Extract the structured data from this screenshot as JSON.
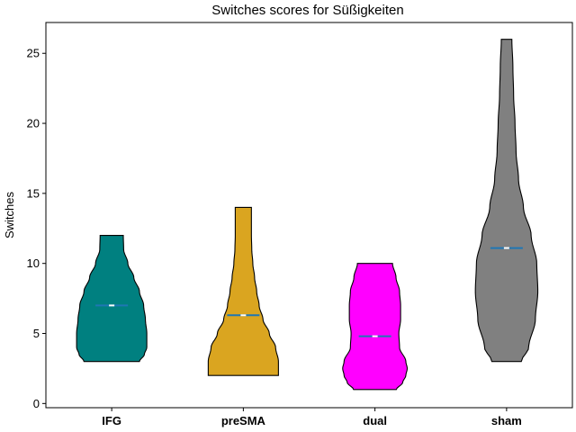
{
  "chart_data": {
    "type": "violin",
    "title": "Switches scores for Süßigkeiten",
    "xlabel": "",
    "ylabel": "Switches",
    "ylim": [
      -0.3,
      27.2
    ],
    "yticks": [
      0,
      5,
      10,
      15,
      20,
      25
    ],
    "grid": false,
    "legend": "none",
    "categories": [
      "IFG",
      "preSMA",
      "dual",
      "sham"
    ],
    "series": [
      {
        "category": "IFG",
        "color": "#008080",
        "min": 3,
        "max": 12,
        "median": 7.0,
        "mean": 7.0,
        "profile": [
          [
            3,
            0.79
          ],
          [
            3.5,
            0.93
          ],
          [
            4,
            1.0
          ],
          [
            5,
            1.0
          ],
          [
            6,
            0.96
          ],
          [
            7,
            0.91
          ],
          [
            8,
            0.79
          ],
          [
            9,
            0.63
          ],
          [
            10,
            0.46
          ],
          [
            11,
            0.34
          ],
          [
            12,
            0.33
          ]
        ]
      },
      {
        "category": "preSMA",
        "color": "#DAA520",
        "min": 2,
        "max": 14,
        "median": 6.3,
        "mean": 6.3,
        "profile": [
          [
            2,
            1.0
          ],
          [
            3,
            1.0
          ],
          [
            4,
            0.92
          ],
          [
            5,
            0.74
          ],
          [
            6,
            0.56
          ],
          [
            7,
            0.45
          ],
          [
            8,
            0.38
          ],
          [
            9,
            0.32
          ],
          [
            10,
            0.27
          ],
          [
            11,
            0.24
          ],
          [
            12,
            0.23
          ],
          [
            13,
            0.23
          ],
          [
            14,
            0.23
          ]
        ]
      },
      {
        "category": "dual",
        "color": "#FF00FF",
        "min": 1,
        "max": 10,
        "median": 4.8,
        "mean": 4.8,
        "profile": [
          [
            1,
            0.61
          ],
          [
            1.5,
            0.79
          ],
          [
            2,
            0.88
          ],
          [
            2.5,
            0.92
          ],
          [
            3,
            0.88
          ],
          [
            4,
            0.7
          ],
          [
            5,
            0.68
          ],
          [
            6,
            0.73
          ],
          [
            7,
            0.73
          ],
          [
            8,
            0.7
          ],
          [
            9,
            0.6
          ],
          [
            10,
            0.5
          ]
        ]
      },
      {
        "category": "sham",
        "color": "#808080",
        "min": 3,
        "max": 26,
        "median": 11.1,
        "mean": 11.1,
        "profile": [
          [
            3,
            0.42
          ],
          [
            4,
            0.63
          ],
          [
            6,
            0.82
          ],
          [
            8,
            0.89
          ],
          [
            10,
            0.86
          ],
          [
            12,
            0.7
          ],
          [
            14,
            0.48
          ],
          [
            16,
            0.34
          ],
          [
            18,
            0.27
          ],
          [
            20,
            0.24
          ],
          [
            22,
            0.2
          ],
          [
            24,
            0.18
          ],
          [
            26,
            0.15
          ]
        ]
      }
    ]
  }
}
